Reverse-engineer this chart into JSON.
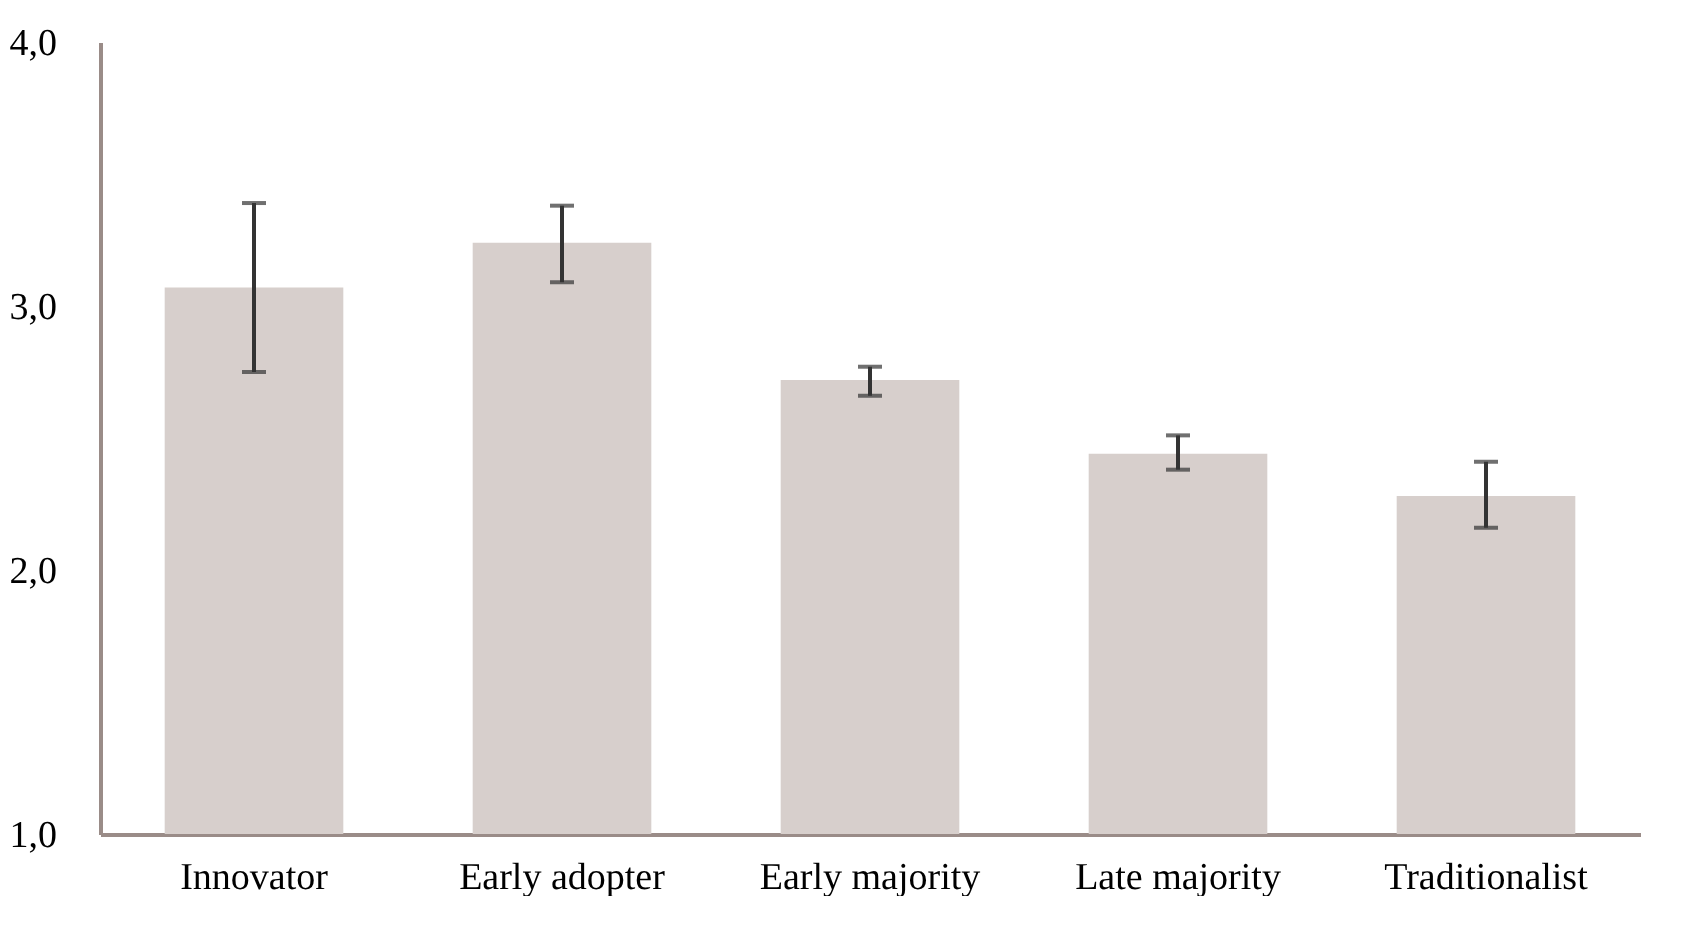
{
  "chart_data": {
    "type": "bar",
    "categories": [
      "Innovator",
      "Early adopter",
      "Early majority",
      "Late majority",
      "Traditionalist"
    ],
    "values": [
      3.07,
      3.24,
      2.72,
      2.44,
      2.28
    ],
    "errors": [
      [
        2.75,
        3.39
      ],
      [
        3.09,
        3.38
      ],
      [
        2.66,
        2.77
      ],
      [
        2.38,
        2.51
      ],
      [
        2.16,
        2.41
      ]
    ],
    "color": "#d7cfcc",
    "ylim": [
      1,
      4
    ],
    "yticks": [
      {
        "value": 1,
        "label": "1,0"
      },
      {
        "value": 2,
        "label": "2,0"
      },
      {
        "value": 3,
        "label": "3,0"
      },
      {
        "value": 4,
        "label": "4,0"
      }
    ],
    "grid": false
  }
}
